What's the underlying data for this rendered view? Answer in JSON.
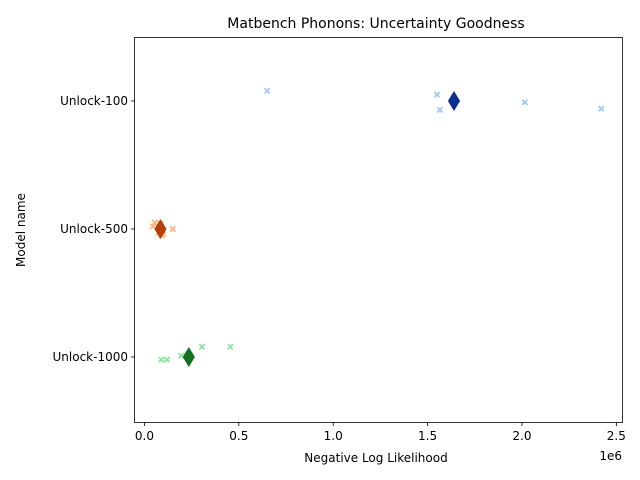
{
  "chart_data": {
    "type": "scatter",
    "title": "Matbench Phonons: Uncertainty Goodness",
    "xlabel": "Negative Log Likelihood",
    "ylabel": "Model name",
    "x_offset_label": "1e6",
    "xlim": [
      -0.05,
      2.53
    ],
    "x_ticks": [
      0.0,
      0.5,
      1.0,
      1.5,
      2.0,
      2.5
    ],
    "x_tick_labels": [
      "0.0",
      "0.5",
      "1.0",
      "1.5",
      "2.0",
      "2.5"
    ],
    "categories": [
      "Unlock-100",
      "Unlock-500",
      "Unlock-1000"
    ],
    "grid": false,
    "legend": "none",
    "x_unit_scale": 1000000,
    "series": [
      {
        "category": "Unlock-100",
        "point_color": "#a1c9f4",
        "mean_color": "#0b2f8f",
        "points": [
          {
            "x": 0.65,
            "jitter": 0.08
          },
          {
            "x": 1.55,
            "jitter": 0.05
          },
          {
            "x": 1.565,
            "jitter": -0.07
          },
          {
            "x": 2.015,
            "jitter": -0.01
          },
          {
            "x": 2.42,
            "jitter": -0.06
          }
        ],
        "mean": 1.64
      },
      {
        "category": "Unlock-500",
        "point_color": "#ffb482",
        "mean_color": "#b1400d",
        "points": [
          {
            "x": 0.045,
            "jitter": 0.02
          },
          {
            "x": 0.055,
            "jitter": 0.05
          },
          {
            "x": 0.075,
            "jitter": -0.03
          },
          {
            "x": 0.085,
            "jitter": 0.04
          },
          {
            "x": 0.09,
            "jitter": -0.05
          },
          {
            "x": 0.1,
            "jitter": -0.04
          },
          {
            "x": 0.15,
            "jitter": 0.0
          }
        ],
        "mean": 0.085
      },
      {
        "category": "Unlock-1000",
        "point_color": "#8de5a1",
        "mean_color": "#12711c",
        "points": [
          {
            "x": 0.09,
            "jitter": -0.02
          },
          {
            "x": 0.12,
            "jitter": -0.02
          },
          {
            "x": 0.195,
            "jitter": 0.01
          },
          {
            "x": 0.305,
            "jitter": 0.08
          },
          {
            "x": 0.455,
            "jitter": 0.08
          }
        ],
        "mean": 0.235
      }
    ]
  }
}
